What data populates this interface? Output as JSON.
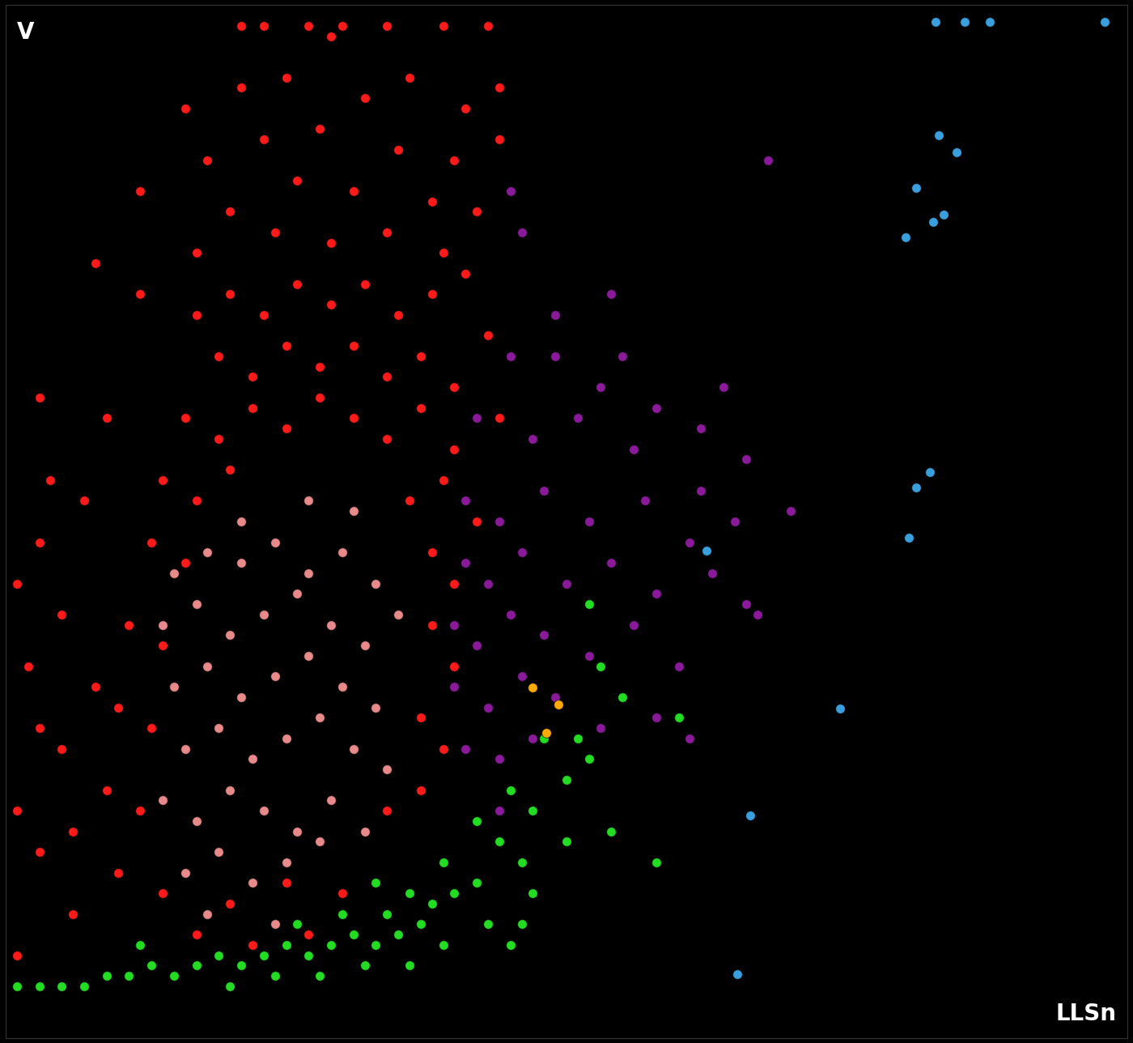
{
  "chart_data": {
    "type": "scatter",
    "y_label": "V",
    "x_label": "LLSn",
    "xlim": [
      0,
      100
    ],
    "ylim": [
      0,
      100
    ],
    "tick_labels": false,
    "grid": false,
    "series": [
      {
        "color": "#ff1a1a",
        "marker": "o",
        "x": [
          21,
          23,
          27,
          30,
          34,
          39,
          43,
          29,
          16,
          21,
          25,
          32,
          36,
          41,
          44,
          18,
          23,
          28,
          35,
          40,
          44,
          12,
          20,
          26,
          31,
          38,
          42,
          8,
          17,
          24,
          29,
          34,
          39,
          41,
          17,
          20,
          23,
          26,
          29,
          32,
          35,
          38,
          19,
          22,
          25,
          28,
          31,
          34,
          37,
          40,
          16,
          19,
          22,
          25,
          28,
          31,
          34,
          37,
          40,
          14,
          17,
          20,
          36,
          39,
          13,
          16,
          38,
          40,
          11,
          14,
          38,
          40,
          10,
          13,
          37,
          39,
          9,
          12,
          34,
          37,
          10,
          14,
          20,
          25,
          30,
          27,
          17,
          22,
          1,
          3,
          2,
          5,
          3,
          1,
          5,
          3,
          6,
          1,
          8,
          6,
          4,
          9,
          3,
          12,
          7,
          44,
          42,
          43
        ],
        "y": [
          98,
          98,
          98,
          98,
          98,
          98,
          98,
          97,
          90,
          92,
          93,
          91,
          93,
          90,
          92,
          85,
          87,
          88,
          86,
          85,
          87,
          82,
          80,
          83,
          82,
          81,
          80,
          75,
          76,
          78,
          77,
          78,
          76,
          74,
          70,
          72,
          70,
          73,
          71,
          73,
          70,
          72,
          66,
          64,
          67,
          65,
          67,
          64,
          66,
          63,
          60,
          58,
          61,
          59,
          62,
          60,
          58,
          61,
          57,
          54,
          52,
          55,
          52,
          54,
          48,
          46,
          47,
          44,
          40,
          38,
          40,
          36,
          32,
          30,
          31,
          28,
          24,
          22,
          22,
          24,
          16,
          14,
          13,
          15,
          14,
          10,
          10,
          9,
          44,
          48,
          36,
          41,
          30,
          22,
          28,
          18,
          12,
          8,
          34,
          20,
          54,
          60,
          62,
          72,
          52,
          60,
          50,
          68
        ]
      },
      {
        "color": "#e88a8a",
        "marker": "o",
        "x": [
          15,
          18,
          21,
          24,
          27,
          30,
          33,
          14,
          17,
          20,
          23,
          26,
          29,
          32,
          35,
          15,
          18,
          21,
          24,
          27,
          30,
          33,
          16,
          19,
          22,
          25,
          28,
          31,
          34,
          14,
          17,
          20,
          23,
          26,
          29,
          32,
          16,
          19,
          22,
          25,
          28,
          18,
          24,
          21,
          27,
          31
        ],
        "y": [
          45,
          47,
          46,
          48,
          45,
          47,
          44,
          40,
          42,
          39,
          41,
          43,
          40,
          38,
          41,
          34,
          36,
          33,
          35,
          37,
          34,
          32,
          28,
          30,
          27,
          29,
          31,
          28,
          26,
          23,
          21,
          24,
          22,
          20,
          23,
          20,
          16,
          18,
          15,
          17,
          19,
          12,
          11,
          50,
          52,
          51
        ]
      },
      {
        "color": "#8a1a9a",
        "marker": "o",
        "x": [
          45,
          46,
          68,
          54,
          45,
          49,
          53,
          58,
          64,
          42,
          47,
          51,
          56,
          62,
          66,
          70,
          41,
          44,
          48,
          52,
          57,
          61,
          65,
          41,
          43,
          46,
          50,
          54,
          58,
          63,
          67,
          40,
          42,
          45,
          48,
          52,
          56,
          60,
          40,
          43,
          46,
          49,
          53,
          58,
          61,
          41,
          44,
          47,
          50,
          44,
          66,
          62,
          55,
          49
        ],
        "y": [
          82,
          78,
          85,
          72,
          66,
          66,
          63,
          61,
          63,
          60,
          58,
          60,
          57,
          59,
          56,
          51,
          52,
          50,
          53,
          50,
          52,
          48,
          50,
          46,
          44,
          47,
          44,
          46,
          43,
          45,
          41,
          40,
          38,
          41,
          39,
          37,
          40,
          36,
          34,
          32,
          35,
          33,
          30,
          31,
          29,
          28,
          27,
          29,
          25,
          22,
          42,
          53,
          66,
          70
        ]
      },
      {
        "color": "#22dd22",
        "marker": "o",
        "x": [
          1,
          3,
          5,
          7,
          9,
          11,
          13,
          15,
          17,
          19,
          21,
          23,
          25,
          27,
          29,
          31,
          33,
          35,
          37,
          39,
          20,
          24,
          28,
          32,
          36,
          12,
          26,
          30,
          34,
          38,
          40,
          42,
          36,
          33,
          39,
          44,
          46,
          42,
          45,
          47,
          50,
          51,
          52,
          55,
          53,
          48,
          54,
          50,
          47,
          43,
          60,
          52,
          58,
          46,
          45
        ],
        "y": [
          5,
          5,
          5,
          5,
          6,
          6,
          7,
          6,
          7,
          8,
          7,
          8,
          9,
          8,
          9,
          10,
          9,
          10,
          11,
          9,
          5,
          6,
          6,
          7,
          7,
          9,
          11,
          12,
          12,
          13,
          14,
          15,
          14,
          15,
          17,
          19,
          17,
          21,
          24,
          22,
          25,
          29,
          27,
          33,
          36,
          29,
          20,
          19,
          14,
          11,
          31,
          42,
          17,
          11,
          9
        ]
      },
      {
        "color": "#3aa0dd",
        "marker": "o",
        "x": [
          82.9,
          85.5,
          87.7,
          98.0,
          83.2,
          84.8,
          81.2,
          83.6,
          82.7,
          80.2,
          82.4,
          81.2,
          80.5,
          62.5,
          74.4,
          66.4,
          65.2
        ],
        "y": [
          98.4,
          98.4,
          98.4,
          98.4,
          87.4,
          85.8,
          82.3,
          79.7,
          79.0,
          77.5,
          54.8,
          53.3,
          48.4,
          47.2,
          31.9,
          21.5,
          6.2
        ]
      },
      {
        "color": "#ffaa00",
        "marker": "o",
        "x": [
          49.3,
          48.2,
          47.0
        ],
        "y": [
          32.3,
          29.5,
          33.9
        ]
      }
    ]
  }
}
